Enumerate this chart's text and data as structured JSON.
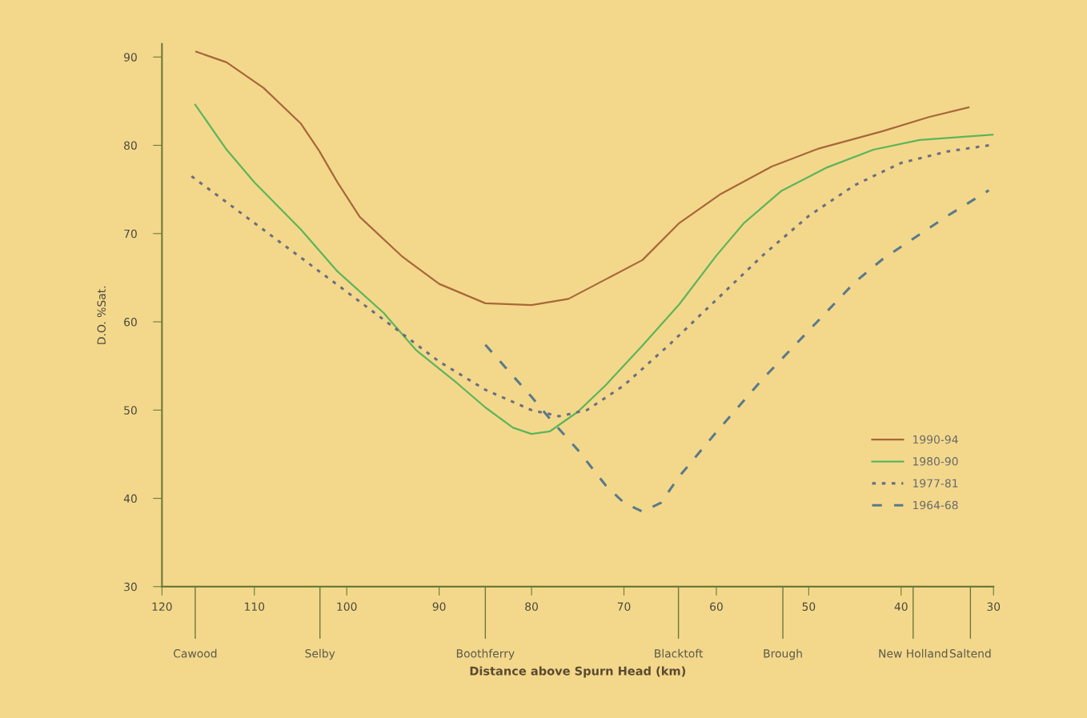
{
  "chart_data": {
    "type": "line",
    "xlabel": "Distance above Spurn Head (km)",
    "ylabel": "D.O. %Sat.",
    "xlim": [
      120,
      30
    ],
    "ylim": [
      30,
      91.5
    ],
    "xticks": [
      120,
      110,
      100,
      90,
      80,
      70,
      60,
      50,
      40,
      30
    ],
    "ref_lines": [
      {
        "axis": "x",
        "value": 116.4,
        "label": "Cawood"
      },
      {
        "axis": "x",
        "value": 102.9,
        "label": "Selby"
      },
      {
        "axis": "x",
        "value": 85,
        "label": "Boothferry"
      },
      {
        "axis": "x",
        "value": 64.1,
        "label": "Blacktoft"
      },
      {
        "axis": "x",
        "value": 52.8,
        "label": "Brough"
      },
      {
        "axis": "x",
        "value": 38.7,
        "label": "New Holland"
      },
      {
        "axis": "x",
        "value": 32.5,
        "label": "Saltend"
      }
    ],
    "yticks": [
      30,
      40,
      50,
      60,
      70,
      80,
      90
    ],
    "grid": false,
    "legend": "bottom right",
    "series": [
      {
        "name": "1990-94",
        "color": "#a8683a",
        "line_style": "solid",
        "x": [
          116.3,
          113,
          109,
          105,
          103,
          101,
          98.6,
          94,
          90,
          85,
          80,
          76,
          72,
          68,
          64,
          59.5,
          54,
          49,
          42,
          37,
          32.7
        ],
        "values": [
          90.6,
          89.4,
          86.5,
          82.5,
          79.4,
          75.8,
          71.9,
          67.4,
          64.3,
          62.1,
          61.9,
          62.6,
          64.8,
          67,
          71.2,
          74.5,
          77.6,
          79.6,
          81.6,
          83.2,
          84.3
        ]
      },
      {
        "name": "1980-90",
        "color": "#5db55a",
        "line_style": "solid",
        "x": [
          116.4,
          113,
          110,
          105,
          101,
          96,
          92.5,
          88,
          85,
          82,
          80,
          78,
          75,
          72,
          68,
          64,
          60,
          57,
          53,
          48,
          43,
          38,
          30
        ],
        "values": [
          84.6,
          79.5,
          75.8,
          70.5,
          65.7,
          61,
          56.8,
          53,
          50.3,
          48,
          47.3,
          47.6,
          49.8,
          52.8,
          57.3,
          62,
          67.5,
          71.2,
          74.8,
          77.5,
          79.5,
          80.6,
          81.2
        ]
      },
      {
        "name": "1977-81",
        "color": "#6b6e80",
        "line_style": "dotted",
        "x": [
          116.8,
          110,
          100,
          90,
          85,
          80,
          77,
          74,
          70,
          65,
          60,
          55,
          50,
          45,
          40,
          35,
          30.5
        ],
        "values": [
          76.5,
          71.2,
          63.4,
          55.5,
          52.3,
          50,
          49.3,
          50,
          52.8,
          57.5,
          62.5,
          67.5,
          72,
          75.5,
          78,
          79.3,
          80
        ]
      },
      {
        "name": "1964-68",
        "color": "#5a7a8a",
        "line_style": "dashed",
        "x": [
          85,
          80,
          78,
          75,
          72,
          70,
          68,
          66,
          64,
          60,
          55,
          50,
          45,
          42,
          40,
          35,
          30.5
        ],
        "values": [
          57.4,
          51.5,
          49,
          45.5,
          41.5,
          39.5,
          38.5,
          39.5,
          42.5,
          47.5,
          53.5,
          59,
          64.5,
          67.1,
          68.5,
          72,
          74.9
        ]
      }
    ]
  }
}
